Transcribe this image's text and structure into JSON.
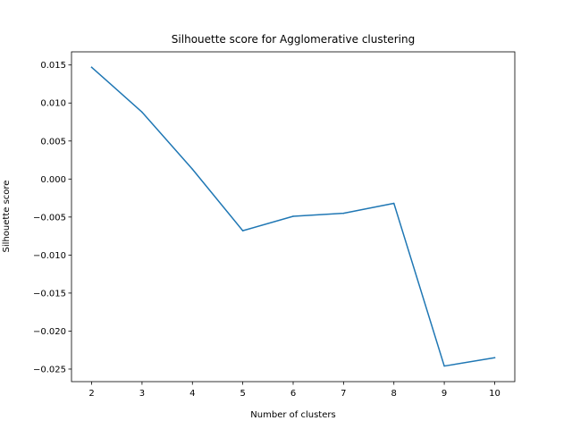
{
  "chart_data": {
    "type": "line",
    "title": "Silhouette score for Agglomerative clustering",
    "xlabel": "Number of clusters",
    "ylabel": "Silhouette score",
    "x": [
      2,
      3,
      4,
      5,
      6,
      7,
      8,
      9,
      10
    ],
    "series": [
      {
        "values": [
          0.0147,
          0.0088,
          0.0013,
          -0.0068,
          -0.0049,
          -0.0045,
          -0.0032,
          -0.0246,
          -0.0235
        ],
        "color": "#1f77b4"
      }
    ],
    "xticks": [
      "2",
      "3",
      "4",
      "5",
      "6",
      "7",
      "8",
      "9",
      "10"
    ],
    "yticks": [
      {
        "value": 0.015,
        "label": "0.015"
      },
      {
        "value": 0.01,
        "label": "0.010"
      },
      {
        "value": 0.005,
        "label": "0.005"
      },
      {
        "value": 0.0,
        "label": "0.000"
      },
      {
        "value": -0.005,
        "label": "−0.005"
      },
      {
        "value": -0.01,
        "label": "−0.010"
      },
      {
        "value": -0.015,
        "label": "−0.015"
      },
      {
        "value": -0.02,
        "label": "−0.020"
      },
      {
        "value": -0.025,
        "label": "−0.025"
      }
    ],
    "xlim": [
      1.6,
      10.4
    ],
    "ylim": [
      -0.02665,
      0.01673
    ],
    "grid": false,
    "legend": "none"
  }
}
